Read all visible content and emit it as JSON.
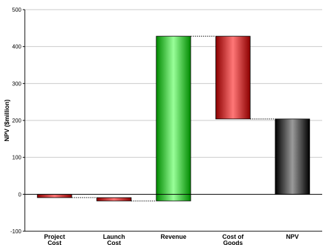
{
  "chart_data": {
    "type": "bar",
    "subtype": "waterfall",
    "title": "",
    "xlabel": "",
    "ylabel": "NPV ($million)",
    "ylim": [
      -100,
      500
    ],
    "yticks": [
      -100,
      0,
      100,
      200,
      300,
      400,
      500
    ],
    "grid": true,
    "legend": "none",
    "categories": [
      "Project Cost",
      "Launch Cost",
      "Revenue",
      "Cost of Goods",
      "NPV"
    ],
    "bars": [
      {
        "category": "Project Cost",
        "start": 0,
        "end": -9,
        "color": "red"
      },
      {
        "category": "Launch Cost",
        "start": -9,
        "end": -18,
        "color": "red"
      },
      {
        "category": "Revenue",
        "start": -18,
        "end": 428,
        "color": "green"
      },
      {
        "category": "Cost of Goods",
        "start": 428,
        "end": 204,
        "color": "red"
      },
      {
        "category": "NPV",
        "start": 0,
        "end": 204,
        "color": "black"
      }
    ],
    "colors": {
      "red": [
        "#8c0000",
        "#ff7777",
        "#8c0000"
      ],
      "green": [
        "#008a00",
        "#99ff99",
        "#008a00"
      ],
      "black": [
        "#000000",
        "#9a9a9a",
        "#000000"
      ]
    }
  }
}
